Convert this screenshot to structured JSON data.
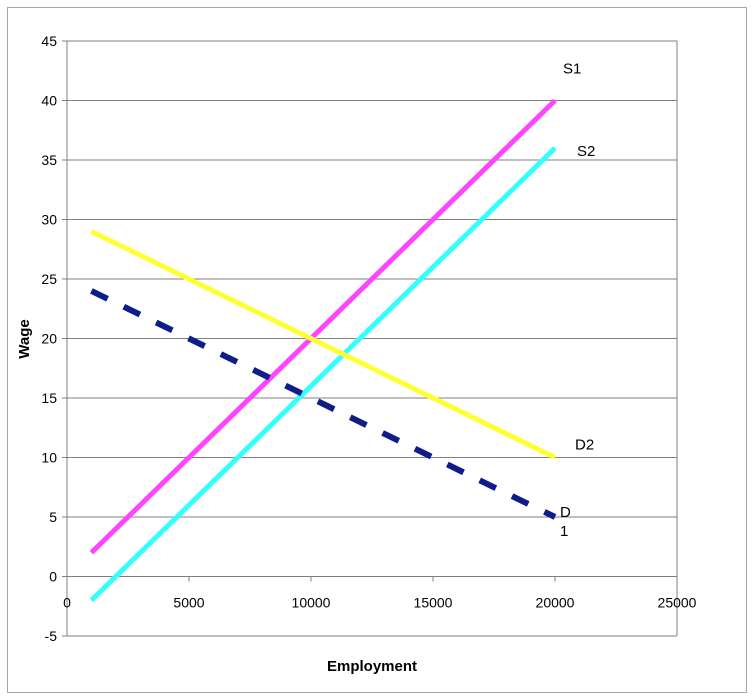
{
  "chart_data": {
    "type": "line",
    "title": "",
    "xlabel": "Employment",
    "ylabel": "Wage",
    "xlim": [
      0,
      25000
    ],
    "ylim": [
      -5,
      45
    ],
    "xticks": [
      0,
      5000,
      10000,
      15000,
      20000,
      25000
    ],
    "yticks": [
      -5,
      0,
      5,
      10,
      15,
      20,
      25,
      30,
      35,
      40,
      45
    ],
    "grid": "horizontal",
    "legend": "none",
    "series": [
      {
        "name": "S1",
        "label_lines": [
          "S1"
        ],
        "color": "#ff44ff",
        "style": "solid",
        "x": [
          1000,
          20000
        ],
        "y": [
          2,
          40
        ]
      },
      {
        "name": "S2",
        "label_lines": [
          "S2"
        ],
        "color": "#33ffff",
        "style": "solid",
        "x": [
          1000,
          20000
        ],
        "y": [
          -2,
          36
        ]
      },
      {
        "name": "D2",
        "label_lines": [
          "D2"
        ],
        "color": "#ffff33",
        "style": "solid",
        "x": [
          1000,
          20000
        ],
        "y": [
          29,
          10
        ]
      },
      {
        "name": "D1",
        "label_lines": [
          "D",
          "1"
        ],
        "color": "#0f1d8c",
        "style": "dashed",
        "x": [
          1000,
          20000
        ],
        "y": [
          24,
          5
        ]
      }
    ]
  }
}
